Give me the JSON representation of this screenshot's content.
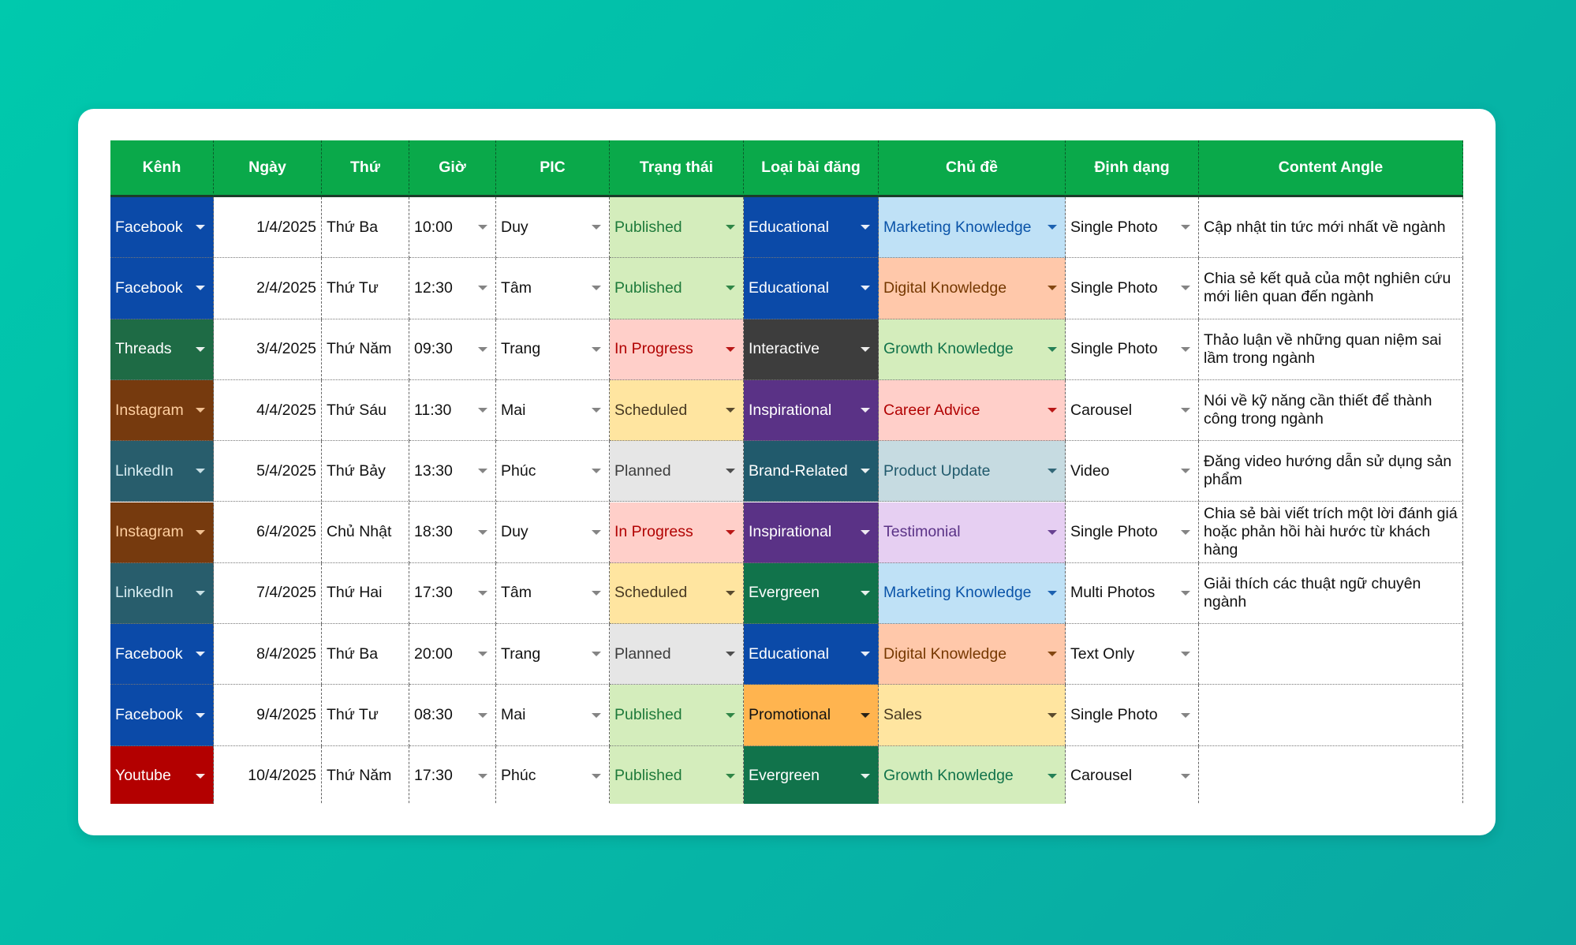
{
  "table": {
    "header": [
      "Kênh",
      "Ngày",
      "Thứ",
      "Giờ",
      "PIC",
      "Trạng thái",
      "Loại bài đăng",
      "Chủ đề",
      "Định dạng",
      "Content Angle"
    ],
    "rows": [
      [
        "Facebook",
        "1/4/2025",
        "Thứ Ba",
        "10:00",
        "Duy",
        "Published",
        "Educational",
        "Marketing Knowledge",
        "Single Photo",
        "Cập nhật tin tức mới nhất về ngành"
      ],
      [
        "Facebook",
        "2/4/2025",
        "Thứ Tư",
        "12:30",
        "Tâm",
        "Published",
        "Educational",
        "Digital Knowledge",
        "Single Photo",
        "Chia sẻ kết quả của một nghiên cứu mới liên quan đến ngành"
      ],
      [
        "Threads",
        "3/4/2025",
        "Thứ Năm",
        "09:30",
        "Trang",
        "In Progress",
        "Interactive",
        "Growth Knowledge",
        "Single Photo",
        "Thảo luận về những quan niệm sai lầm trong ngành"
      ],
      [
        "Instagram",
        "4/4/2025",
        "Thứ Sáu",
        "11:30",
        "Mai",
        "Scheduled",
        "Inspirational",
        "Career Advice",
        "Carousel",
        "Nói về kỹ năng cần thiết để thành công trong ngành"
      ],
      [
        "LinkedIn",
        "5/4/2025",
        "Thứ Bảy",
        "13:30",
        "Phúc",
        "Planned",
        "Brand-Related",
        "Product Update",
        "Video",
        "Đăng video hướng dẫn sử dụng sản phẩm"
      ],
      [
        "Instagram",
        "6/4/2025",
        "Chủ Nhật",
        "18:30",
        "Duy",
        "In Progress",
        "Inspirational",
        "Testimonial",
        "Single Photo",
        "Chia sẻ bài viết trích một lời đánh giá hoặc phản hồi hài hước từ khách hàng"
      ],
      [
        "LinkedIn",
        "7/4/2025",
        "Thứ Hai",
        "17:30",
        "Tâm",
        "Scheduled",
        "Evergreen",
        "Marketing Knowledge",
        "Multi Photos",
        "Giải thích các thuật ngữ chuyên ngành"
      ],
      [
        "Facebook",
        "8/4/2025",
        "Thứ Ba",
        "20:00",
        "Trang",
        "Planned",
        "Educational",
        "Digital Knowledge",
        "Text Only"
      ],
      [
        "Facebook",
        "9/4/2025",
        "Thứ Tư",
        "08:30",
        "Mai",
        "Published",
        "Promotional",
        "Sales",
        "Single Photo"
      ],
      [
        "Youtube",
        "10/4/2025",
        "Thứ Năm",
        "17:30",
        "Phúc",
        "Published",
        "Evergreen",
        "Growth Knowledge",
        "Carousel"
      ]
    ]
  }
}
